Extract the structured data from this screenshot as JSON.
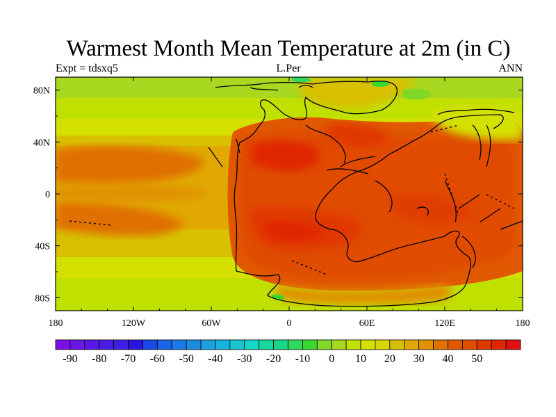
{
  "title": "Warmest Month Mean Temperature at 2m (in C)",
  "subtitle_left": "Expt = tdsxq5",
  "subtitle_center": "L.Per",
  "subtitle_right": "ANN",
  "map": {
    "lon_range": [
      -180,
      180
    ],
    "lat_range": [
      -90,
      90
    ],
    "x_ticks": [
      {
        "value": -180,
        "label": "180"
      },
      {
        "value": -120,
        "label": "120W"
      },
      {
        "value": -60,
        "label": "60W"
      },
      {
        "value": 0,
        "label": "0"
      },
      {
        "value": 60,
        "label": "60E"
      },
      {
        "value": 120,
        "label": "120E"
      },
      {
        "value": 180,
        "label": "180"
      }
    ],
    "y_ticks": [
      {
        "value": 80,
        "label": "80N"
      },
      {
        "value": 40,
        "label": "40N"
      },
      {
        "value": 0,
        "label": "0"
      },
      {
        "value": -40,
        "label": "40S"
      },
      {
        "value": -80,
        "label": "80S"
      }
    ]
  },
  "colorbar": {
    "min": -95,
    "step": 5,
    "colors": [
      "#7c10e8",
      "#6a14e8",
      "#5a18e6",
      "#4a1ce6",
      "#3e20e2",
      "#2c14e0",
      "#1a48e4",
      "#1a64e8",
      "#1a7ce8",
      "#1a8ce0",
      "#1aa0e0",
      "#14b4e0",
      "#18c4d0",
      "#14d8c8",
      "#18d8a0",
      "#18d884",
      "#30d860",
      "#38d830",
      "#80d828",
      "#a8d820",
      "#c0e000",
      "#d4e000",
      "#d8d400",
      "#d8c000",
      "#e0a800",
      "#e09000",
      "#e07000",
      "#e05800",
      "#e04c00",
      "#e03800",
      "#e02800",
      "#e01010"
    ],
    "labels": [
      "-90",
      "-80",
      "-70",
      "-60",
      "-50",
      "-40",
      "-30",
      "-20",
      "-10",
      "0",
      "10",
      "20",
      "30",
      "40",
      "50"
    ]
  }
}
